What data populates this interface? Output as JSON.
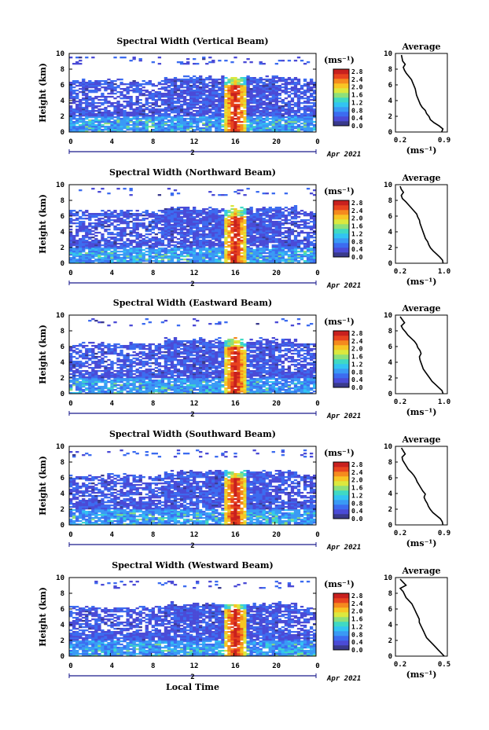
{
  "chart_data": {
    "type": "heatmap",
    "x_axis_label": "Local Time",
    "date_label": "2",
    "date_suffix": "Apr 2021",
    "colorbar": {
      "unit": "(ms⁻¹)",
      "ticks": [
        "0.0",
        "0.4",
        "0.8",
        "1.2",
        "1.6",
        "2.0",
        "2.4",
        "2.8"
      ],
      "colors": [
        "#3a3a8c",
        "#4b4bd6",
        "#3c6cf0",
        "#3a9af5",
        "#32c4f2",
        "#3fd9c4",
        "#8ee07a",
        "#dce83e",
        "#f8c524",
        "#f58a1e",
        "#e8431f",
        "#c8201e"
      ]
    },
    "profile_xlabel": "(ms⁻¹)",
    "profile_title": "Average",
    "ylabel": "Height (km)",
    "height_ticks": [
      "0",
      "2",
      "4",
      "6",
      "8",
      "10"
    ],
    "time_ticks": [
      "0",
      "4",
      "8",
      "12",
      "16",
      "20",
      "0"
    ],
    "panels": [
      {
        "title": "Spectral Width (Vertical Beam)",
        "avg_ticks": [
          "0.2",
          "0.9"
        ],
        "avg_profile": [
          0.86,
          0.88,
          0.82,
          0.74,
          0.68,
          0.66,
          0.62,
          0.6,
          0.55,
          0.52,
          0.5,
          0.48,
          0.46,
          0.45,
          0.44,
          0.42,
          0.4,
          0.38,
          0.34,
          0.3,
          0.27,
          0.25,
          0.28,
          0.24,
          0.23,
          0.22
        ]
      },
      {
        "title": "Spectral Width (Northward Beam)",
        "avg_ticks": [
          "0.2",
          "1.0"
        ],
        "avg_profile": [
          0.98,
          0.97,
          0.92,
          0.86,
          0.8,
          0.75,
          0.72,
          0.7,
          0.66,
          0.64,
          0.62,
          0.6,
          0.58,
          0.56,
          0.55,
          0.52,
          0.5,
          0.45,
          0.4,
          0.35,
          0.3,
          0.24,
          0.22,
          0.26,
          0.22,
          0.2
        ]
      },
      {
        "title": "Spectral Width (Eastward Beam)",
        "avg_ticks": [
          "0.2",
          "1.0"
        ],
        "avg_profile": [
          0.98,
          0.96,
          0.9,
          0.84,
          0.78,
          0.74,
          0.7,
          0.66,
          0.62,
          0.6,
          0.58,
          0.56,
          0.55,
          0.58,
          0.56,
          0.52,
          0.5,
          0.46,
          0.4,
          0.34,
          0.3,
          0.25,
          0.22,
          0.28,
          0.24,
          0.2
        ]
      },
      {
        "title": "Spectral Width (Southward Beam)",
        "avg_ticks": [
          "0.2",
          "0.9"
        ],
        "avg_profile": [
          0.88,
          0.87,
          0.84,
          0.78,
          0.72,
          0.68,
          0.65,
          0.63,
          0.6,
          0.58,
          0.6,
          0.56,
          0.53,
          0.5,
          0.47,
          0.45,
          0.42,
          0.38,
          0.33,
          0.3,
          0.27,
          0.24,
          0.23,
          0.28,
          0.25,
          0.22
        ]
      },
      {
        "title": "Spectral Width (Westward Beam)",
        "avg_ticks": [
          "0.2",
          "0.5"
        ],
        "avg_profile": [
          0.5,
          0.48,
          0.46,
          0.44,
          0.42,
          0.4,
          0.38,
          0.37,
          0.36,
          0.35,
          0.34,
          0.33,
          0.33,
          0.32,
          0.31,
          0.3,
          0.29,
          0.28,
          0.26,
          0.24,
          0.23,
          0.22,
          0.2,
          0.24,
          0.22,
          0.2
        ]
      }
    ]
  }
}
